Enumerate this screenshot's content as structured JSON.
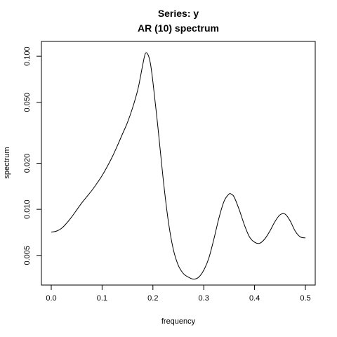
{
  "chart_data": {
    "type": "line",
    "title": "Series: y",
    "subtitle": "AR (10) spectrum",
    "xlabel": "frequency",
    "ylabel": "spectrum",
    "xlim": [
      0.0,
      0.5
    ],
    "ylim": [
      0.0032,
      0.125
    ],
    "yscale": "log",
    "grid": false,
    "x_ticks": [
      {
        "value": 0.0,
        "label": "0.0"
      },
      {
        "value": 0.1,
        "label": "0.1"
      },
      {
        "value": 0.2,
        "label": "0.2"
      },
      {
        "value": 0.3,
        "label": "0.3"
      },
      {
        "value": 0.4,
        "label": "0.4"
      },
      {
        "value": 0.5,
        "label": "0.5"
      }
    ],
    "y_ticks": [
      {
        "value": 0.005,
        "label": "0.005"
      },
      {
        "value": 0.01,
        "label": "0.010"
      },
      {
        "value": 0.02,
        "label": "0.020"
      },
      {
        "value": 0.05,
        "label": "0.050"
      },
      {
        "value": 0.1,
        "label": "0.100"
      }
    ],
    "series": [
      {
        "name": "spectrum",
        "x": [
          0.0,
          0.01,
          0.02,
          0.03,
          0.04,
          0.05,
          0.06,
          0.07,
          0.08,
          0.09,
          0.1,
          0.11,
          0.12,
          0.13,
          0.14,
          0.15,
          0.16,
          0.17,
          0.175,
          0.18,
          0.185,
          0.19,
          0.195,
          0.2,
          0.21,
          0.22,
          0.23,
          0.24,
          0.25,
          0.26,
          0.27,
          0.28,
          0.29,
          0.3,
          0.31,
          0.32,
          0.33,
          0.34,
          0.35,
          0.355,
          0.36,
          0.37,
          0.38,
          0.39,
          0.4,
          0.41,
          0.42,
          0.43,
          0.44,
          0.45,
          0.46,
          0.47,
          0.48,
          0.49,
          0.5
        ],
        "y": [
          0.0071,
          0.0072,
          0.0075,
          0.0081,
          0.0089,
          0.0099,
          0.011,
          0.0121,
          0.0133,
          0.0148,
          0.0166,
          0.019,
          0.022,
          0.026,
          0.031,
          0.037,
          0.046,
          0.06,
          0.072,
          0.088,
          0.104,
          0.103,
          0.09,
          0.068,
          0.034,
          0.016,
          0.0085,
          0.0055,
          0.0043,
          0.0038,
          0.0036,
          0.0035,
          0.0036,
          0.004,
          0.0048,
          0.0064,
          0.0088,
          0.0113,
          0.0126,
          0.0125,
          0.012,
          0.0099,
          0.0079,
          0.0066,
          0.0061,
          0.006,
          0.0064,
          0.0072,
          0.0083,
          0.0092,
          0.0093,
          0.0084,
          0.0072,
          0.0066,
          0.0065
        ]
      }
    ]
  }
}
